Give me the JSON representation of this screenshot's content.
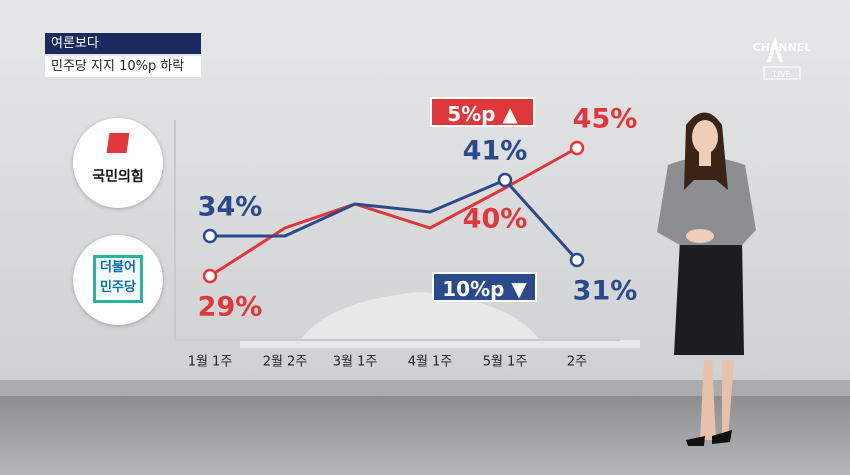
{
  "header": {
    "segment": "여론보다",
    "headline": "민주당 지지 10%p 하락"
  },
  "logo": {
    "name": "CHANNEL",
    "status": "LIVE"
  },
  "chart_data": {
    "type": "line",
    "categories": [
      "1월 1주",
      "2월 2주",
      "3월 1주",
      "4월 1주",
      "5월 1주",
      "2주"
    ],
    "series": [
      {
        "name": "국민의힘",
        "color": "#e0383a",
        "values": [
          29,
          35,
          38,
          35,
          40,
          45
        ],
        "value_labels": [
          "29%",
          null,
          null,
          null,
          "40%",
          "45%"
        ]
      },
      {
        "name": "더불어 민주당",
        "color": "#2b4a8c",
        "values": [
          34,
          34,
          38,
          37,
          41,
          31
        ],
        "value_labels": [
          "34%",
          null,
          null,
          null,
          "41%",
          "31%"
        ]
      }
    ],
    "annotations": [
      {
        "text": "5%p ▲",
        "color": "#e0383a"
      },
      {
        "text": "10%p ▼",
        "color": "#2b4a8c"
      }
    ]
  }
}
